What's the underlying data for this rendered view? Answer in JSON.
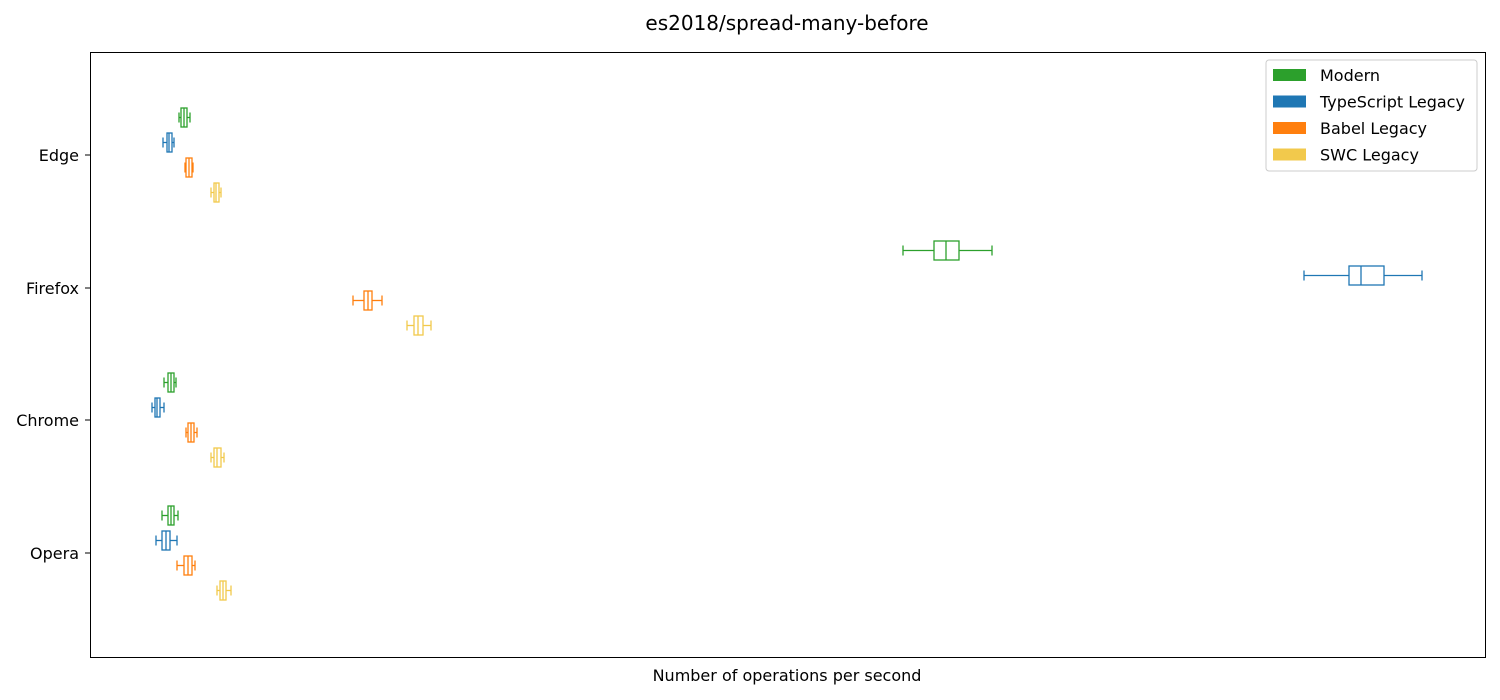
{
  "chart_data": {
    "type": "boxplot",
    "orientation": "horizontal",
    "title": "es2018/spread-many-before",
    "xlabel": "Number of operations per second",
    "ylabel": "",
    "x_ticks_shown": false,
    "categories": [
      "Edge",
      "Firefox",
      "Chrome",
      "Opera"
    ],
    "legend": {
      "position": "top-right",
      "entries": [
        {
          "name": "Modern",
          "color": "#2ca02c"
        },
        {
          "name": "TypeScript Legacy",
          "color": "#1f77b4"
        },
        {
          "name": "Babel Legacy",
          "color": "#ff7f0e"
        },
        {
          "name": "SWC Legacy",
          "color": "#f2c94c"
        }
      ]
    },
    "series": [
      {
        "name": "Modern",
        "color": "#2ca02c",
        "boxes": [
          {
            "category": "Edge",
            "whislo": 179,
            "q1": 181,
            "median": 184,
            "q3": 187,
            "whishi": 190
          },
          {
            "category": "Firefox",
            "whislo": 903,
            "q1": 934,
            "median": 946,
            "q3": 959,
            "whishi": 992
          },
          {
            "category": "Chrome",
            "whislo": 164,
            "q1": 168,
            "median": 171,
            "q3": 174,
            "whishi": 176
          },
          {
            "category": "Opera",
            "whislo": 162,
            "q1": 168,
            "median": 171,
            "q3": 174,
            "whishi": 178
          }
        ]
      },
      {
        "name": "TypeScript Legacy",
        "color": "#1f77b4",
        "boxes": [
          {
            "category": "Edge",
            "whislo": 163,
            "q1": 167,
            "median": 169,
            "q3": 172,
            "whishi": 174
          },
          {
            "category": "Firefox",
            "whislo": 1304,
            "q1": 1349,
            "median": 1361,
            "q3": 1384,
            "whishi": 1422
          },
          {
            "category": "Chrome",
            "whislo": 152,
            "q1": 155,
            "median": 157,
            "q3": 160,
            "whishi": 164
          },
          {
            "category": "Opera",
            "whislo": 156,
            "q1": 162,
            "median": 166,
            "q3": 170,
            "whishi": 177
          }
        ]
      },
      {
        "name": "Babel Legacy",
        "color": "#ff7f0e",
        "boxes": [
          {
            "category": "Edge",
            "whislo": 185,
            "q1": 186,
            "median": 189,
            "q3": 192,
            "whishi": 193
          },
          {
            "category": "Firefox",
            "whislo": 353,
            "q1": 364,
            "median": 368,
            "q3": 372,
            "whishi": 382
          },
          {
            "category": "Chrome",
            "whislo": 186,
            "q1": 188,
            "median": 191,
            "q3": 194,
            "whishi": 197
          },
          {
            "category": "Opera",
            "whislo": 177,
            "q1": 184,
            "median": 188,
            "q3": 192,
            "whishi": 195
          }
        ]
      },
      {
        "name": "SWC Legacy",
        "color": "#f2c94c",
        "boxes": [
          {
            "category": "Edge",
            "whislo": 211,
            "q1": 214,
            "median": 216,
            "q3": 219,
            "whishi": 221
          },
          {
            "category": "Firefox",
            "whislo": 407,
            "q1": 414,
            "median": 418,
            "q3": 423,
            "whishi": 431
          },
          {
            "category": "Chrome",
            "whislo": 211,
            "q1": 214,
            "median": 217,
            "q3": 221,
            "whishi": 224
          },
          {
            "category": "Opera",
            "whislo": 217,
            "q1": 220,
            "median": 223,
            "q3": 226,
            "whishi": 231
          }
        ]
      }
    ]
  }
}
